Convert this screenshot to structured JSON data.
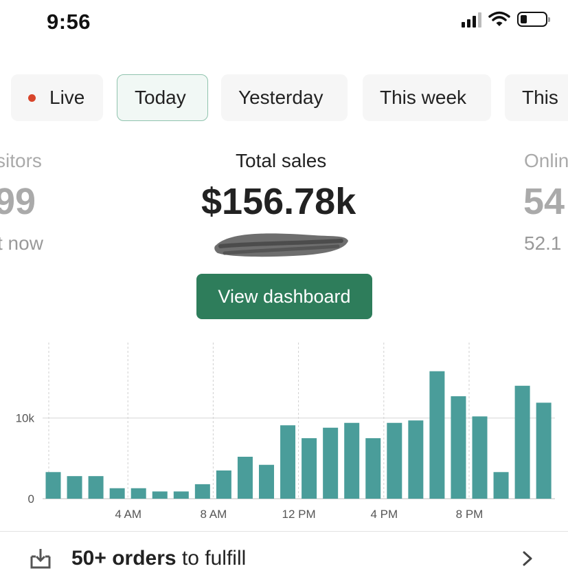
{
  "status_bar": {
    "time": "9:56"
  },
  "tabs": [
    {
      "label": "Live",
      "live_dot_color": "#d8452b"
    },
    {
      "label": "Today",
      "selected": true
    },
    {
      "label": "Yesterday"
    },
    {
      "label": "This week"
    },
    {
      "label": "This"
    }
  ],
  "metrics": {
    "left": {
      "label": "sitors",
      "value": "99",
      "sub": "t now"
    },
    "center": {
      "label": "Total sales",
      "value": "$156.78k",
      "button_label": "View dashboard"
    },
    "right": {
      "label": "Onlin",
      "value": "54",
      "sub": "52.1"
    }
  },
  "colors": {
    "accent": "#2e7d5b",
    "bar": "#4a9d9a",
    "live": "#d8452b"
  },
  "chart_data": {
    "type": "bar",
    "categories": [
      "12 AM",
      "1 AM",
      "2 AM",
      "3 AM",
      "4 AM",
      "5 AM",
      "6 AM",
      "7 AM",
      "8 AM",
      "9 AM",
      "10 AM",
      "11 AM",
      "12 PM",
      "1 PM",
      "2 PM",
      "3 PM",
      "4 PM",
      "5 PM",
      "6 PM",
      "7 PM",
      "8 PM",
      "9 PM",
      "10 PM",
      "11 PM"
    ],
    "values": [
      3300,
      2800,
      2800,
      1300,
      1300,
      900,
      900,
      1800,
      3500,
      5200,
      4200,
      9100,
      7500,
      8800,
      9400,
      7500,
      9400,
      9700,
      15800,
      12700,
      10200,
      3300,
      14000,
      11900
    ],
    "ylim": [
      0,
      18500
    ],
    "y_ticks": [
      {
        "value": 0,
        "label": "0"
      },
      {
        "value": 10000,
        "label": "10k"
      }
    ],
    "x_ticks": [
      {
        "index": 4,
        "label": "4 AM"
      },
      {
        "index": 8,
        "label": "8 AM"
      },
      {
        "index": 12,
        "label": "12 PM"
      },
      {
        "index": 16,
        "label": "4 PM"
      },
      {
        "index": 20,
        "label": "8 PM"
      }
    ],
    "grid": true
  },
  "orders": {
    "bold": "50+ orders",
    "rest": " to fulfill",
    "icon": "inbox-download-icon"
  }
}
